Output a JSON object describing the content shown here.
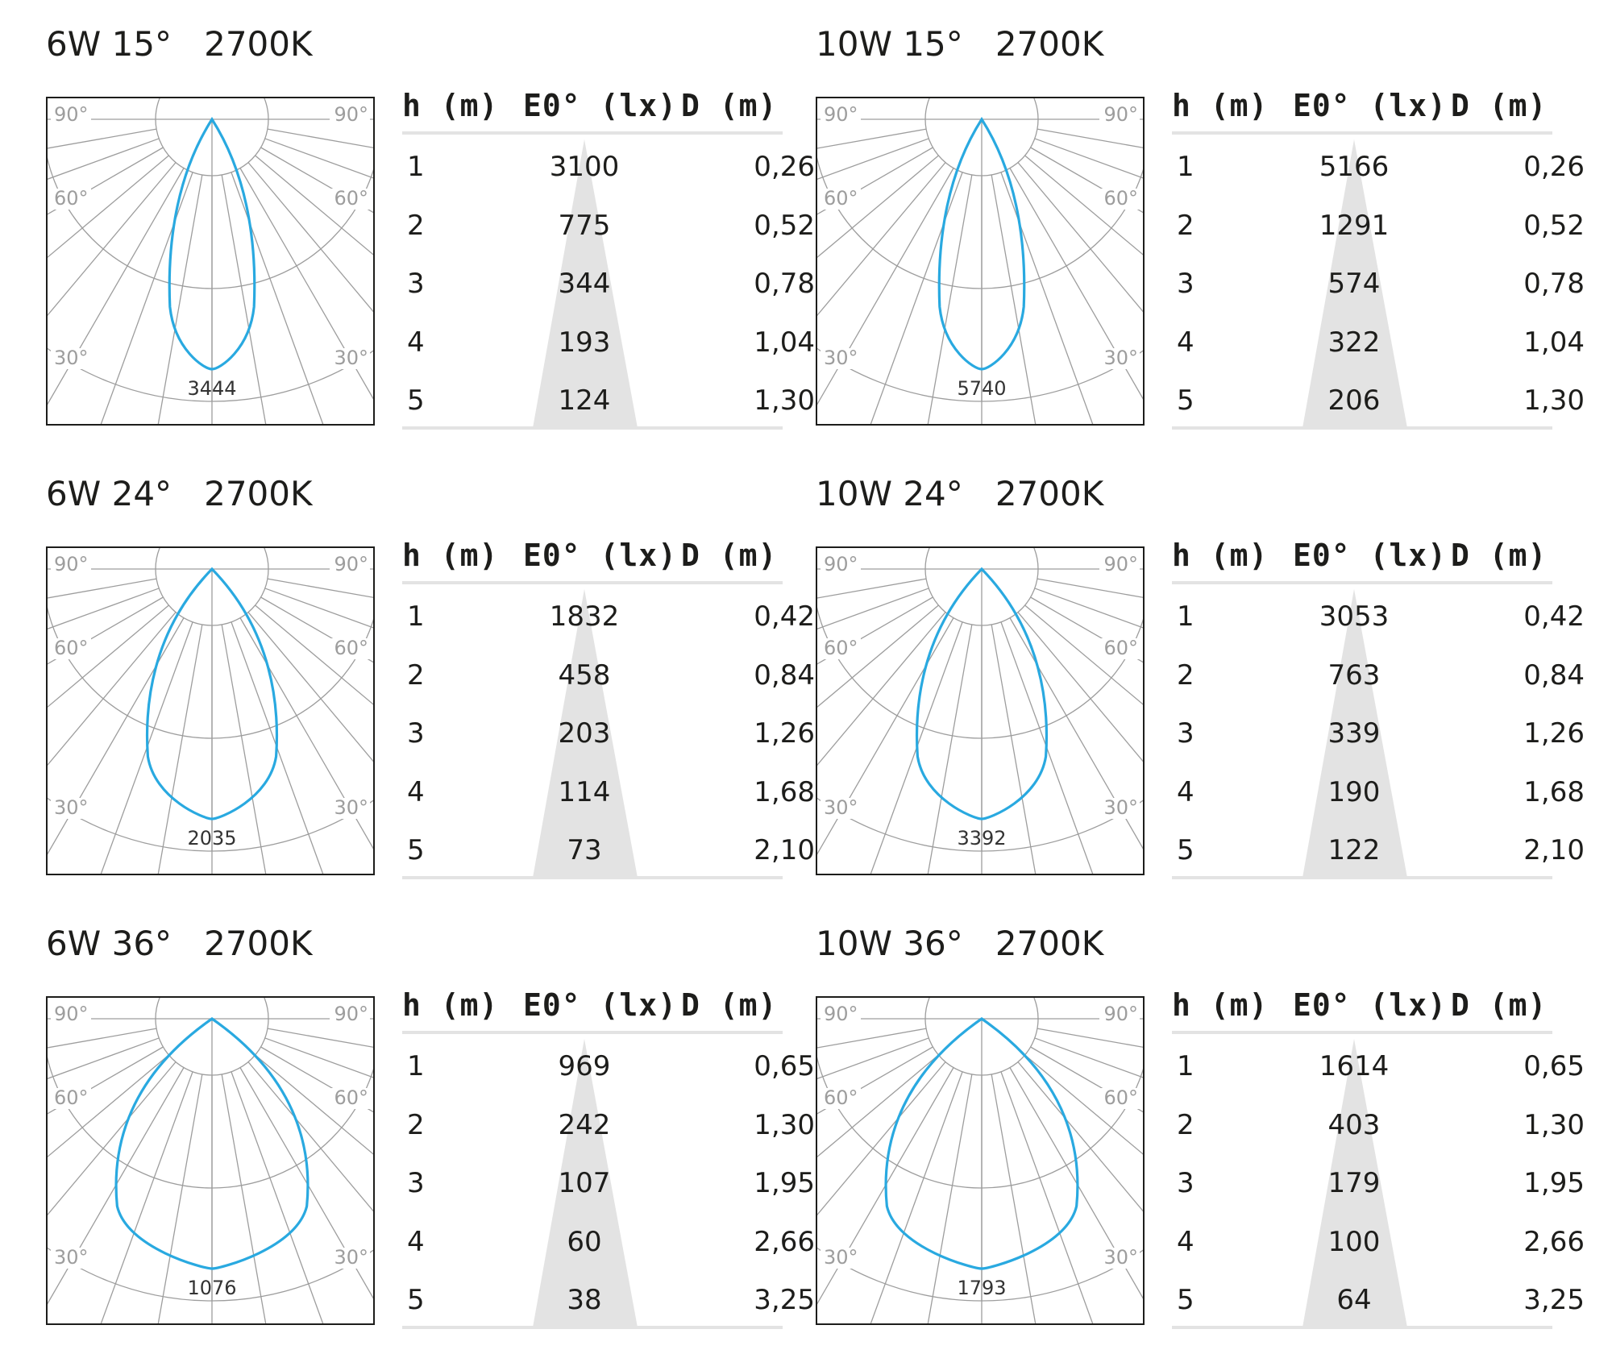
{
  "colors": {
    "curve": "#29a9e0",
    "grid": "#9d9d9d",
    "frame": "#1d1d1b",
    "cone": "#e3e3e3",
    "text": "#1d1d1b"
  },
  "chart_data": [
    {
      "type": "table",
      "title": "6W 15°   2700K",
      "polar": {
        "angle_labels": [
          "90°",
          "90°",
          "60°",
          "60°",
          "30°",
          "30°"
        ],
        "peak_label": "3444",
        "beam_half_angle_deg": 7.5
      },
      "columns": [
        "h (m)",
        "E0° (lx)",
        "D (m)"
      ],
      "rows": [
        [
          "1",
          "3100",
          "0,26"
        ],
        [
          "2",
          "775",
          "0,52"
        ],
        [
          "3",
          "344",
          "0,78"
        ],
        [
          "4",
          "193",
          "1,04"
        ],
        [
          "5",
          "124",
          "1,30"
        ]
      ]
    },
    {
      "type": "table",
      "title": "10W 15°   2700K",
      "polar": {
        "angle_labels": [
          "90°",
          "90°",
          "60°",
          "60°",
          "30°",
          "30°"
        ],
        "peak_label": "5740",
        "beam_half_angle_deg": 7.5
      },
      "columns": [
        "h (m)",
        "E0° (lx)",
        "D (m)"
      ],
      "rows": [
        [
          "1",
          "5166",
          "0,26"
        ],
        [
          "2",
          "1291",
          "0,52"
        ],
        [
          "3",
          "574",
          "0,78"
        ],
        [
          "4",
          "322",
          "1,04"
        ],
        [
          "5",
          "206",
          "1,30"
        ]
      ]
    },
    {
      "type": "table",
      "title": "6W 24°   2700K",
      "polar": {
        "angle_labels": [
          "90°",
          "90°",
          "60°",
          "60°",
          "30°",
          "30°"
        ],
        "peak_label": "2035",
        "beam_half_angle_deg": 12
      },
      "columns": [
        "h (m)",
        "E0° (lx)",
        "D (m)"
      ],
      "rows": [
        [
          "1",
          "1832",
          "0,42"
        ],
        [
          "2",
          "458",
          "0,84"
        ],
        [
          "3",
          "203",
          "1,26"
        ],
        [
          "4",
          "114",
          "1,68"
        ],
        [
          "5",
          "73",
          "2,10"
        ]
      ]
    },
    {
      "type": "table",
      "title": "10W 24°   2700K",
      "polar": {
        "angle_labels": [
          "90°",
          "90°",
          "60°",
          "60°",
          "30°",
          "30°"
        ],
        "peak_label": "3392",
        "beam_half_angle_deg": 12
      },
      "columns": [
        "h (m)",
        "E0° (lx)",
        "D (m)"
      ],
      "rows": [
        [
          "1",
          "3053",
          "0,42"
        ],
        [
          "2",
          "763",
          "0,84"
        ],
        [
          "3",
          "339",
          "1,26"
        ],
        [
          "4",
          "190",
          "1,68"
        ],
        [
          "5",
          "122",
          "2,10"
        ]
      ]
    },
    {
      "type": "table",
      "title": "6W 36°   2700K",
      "polar": {
        "angle_labels": [
          "90°",
          "90°",
          "60°",
          "60°",
          "30°",
          "30°"
        ],
        "peak_label": "1076",
        "beam_half_angle_deg": 18
      },
      "columns": [
        "h (m)",
        "E0° (lx)",
        "D (m)"
      ],
      "rows": [
        [
          "1",
          "969",
          "0,65"
        ],
        [
          "2",
          "242",
          "1,30"
        ],
        [
          "3",
          "107",
          "1,95"
        ],
        [
          "4",
          "60",
          "2,66"
        ],
        [
          "5",
          "38",
          "3,25"
        ]
      ]
    },
    {
      "type": "table",
      "title": "10W 36°   2700K",
      "polar": {
        "angle_labels": [
          "90°",
          "90°",
          "60°",
          "60°",
          "30°",
          "30°"
        ],
        "peak_label": "1793",
        "beam_half_angle_deg": 18
      },
      "columns": [
        "h (m)",
        "E0° (lx)",
        "D (m)"
      ],
      "rows": [
        [
          "1",
          "1614",
          "0,65"
        ],
        [
          "2",
          "403",
          "1,30"
        ],
        [
          "3",
          "179",
          "1,95"
        ],
        [
          "4",
          "100",
          "2,66"
        ],
        [
          "5",
          "64",
          "3,25"
        ]
      ]
    }
  ]
}
